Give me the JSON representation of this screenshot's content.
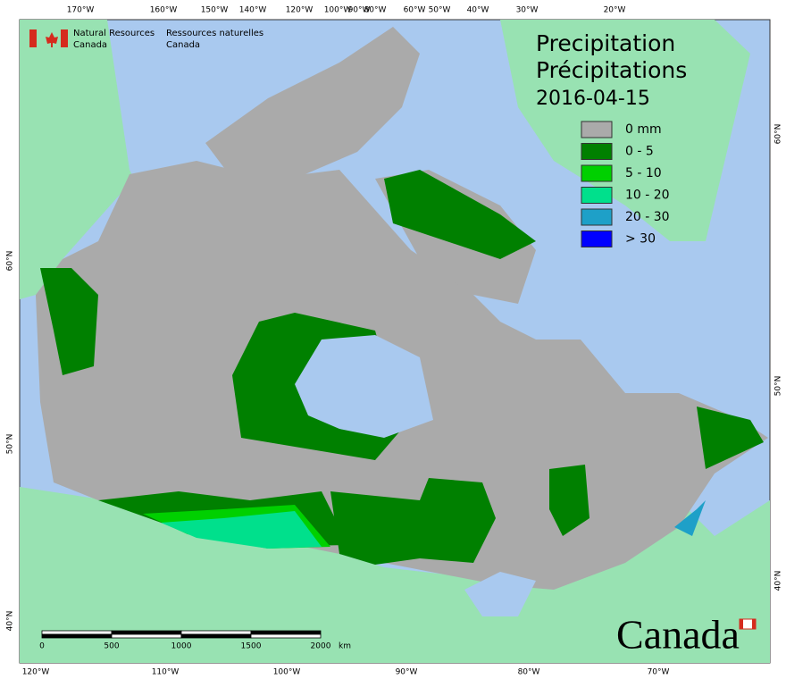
{
  "header": {
    "english": [
      "Natural Resources",
      "Canada"
    ],
    "french": [
      "Ressources naturelles",
      "Canada"
    ]
  },
  "title": {
    "lines": [
      "Precipitation",
      "Précipitations"
    ],
    "date": "2016-04-15"
  },
  "legend": [
    {
      "label": "0 mm",
      "color": "#aaaaaa"
    },
    {
      "label": "0 - 5",
      "color": "#008000"
    },
    {
      "label": "5 - 10",
      "color": "#00d000"
    },
    {
      "label": "10 - 20",
      "color": "#00e08c"
    },
    {
      "label": "20 - 30",
      "color": "#1ea0c8"
    },
    {
      "label": "> 30",
      "color": "#0000ff"
    }
  ],
  "graticule": {
    "top": [
      "170°W",
      "160°W",
      "150°W",
      "140°W",
      "120°W",
      "100°W",
      "90°W",
      "80°W",
      "60°W",
      "50°W",
      "40°W",
      "30°W",
      "20°W"
    ],
    "bottom": [
      "120°W",
      "110°W",
      "100°W",
      "90°W",
      "80°W",
      "70°W"
    ],
    "left": [
      "60°N",
      "50°N",
      "40°N"
    ],
    "right": [
      "60°N",
      "50°N",
      "40°N"
    ]
  },
  "scale_bar": {
    "labels": [
      "0",
      "500",
      "1000",
      "1500",
      "2000"
    ],
    "unit": "km"
  },
  "wordmark": "Canada"
}
